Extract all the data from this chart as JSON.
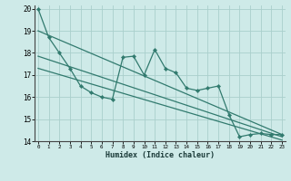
{
  "x": [
    0,
    1,
    2,
    3,
    4,
    5,
    6,
    7,
    8,
    9,
    10,
    11,
    12,
    13,
    14,
    15,
    16,
    17,
    18,
    19,
    20,
    21,
    22,
    23
  ],
  "y_main": [
    20,
    18.7,
    18.0,
    17.3,
    16.5,
    16.2,
    16.0,
    15.9,
    17.8,
    17.85,
    17.0,
    18.15,
    17.3,
    17.1,
    16.4,
    16.3,
    16.4,
    16.5,
    15.2,
    14.2,
    14.3,
    14.35,
    14.3,
    14.3
  ],
  "line1_x": [
    0,
    23
  ],
  "line1_y": [
    19.0,
    14.3
  ],
  "line2_x": [
    0,
    23
  ],
  "line2_y": [
    17.85,
    14.2
  ],
  "line3_x": [
    0,
    23
  ],
  "line3_y": [
    17.3,
    14.05
  ],
  "line_color": "#317a6e",
  "bg_color": "#ceeae8",
  "grid_color": "#aacfcc",
  "xlabel": "Humidex (Indice chaleur)",
  "ylim": [
    14,
    20
  ],
  "xlim": [
    0,
    23
  ],
  "yticks": [
    14,
    15,
    16,
    17,
    18,
    19,
    20
  ],
  "xticks": [
    0,
    1,
    2,
    3,
    4,
    5,
    6,
    7,
    8,
    9,
    10,
    11,
    12,
    13,
    14,
    15,
    16,
    17,
    18,
    19,
    20,
    21,
    22,
    23
  ]
}
